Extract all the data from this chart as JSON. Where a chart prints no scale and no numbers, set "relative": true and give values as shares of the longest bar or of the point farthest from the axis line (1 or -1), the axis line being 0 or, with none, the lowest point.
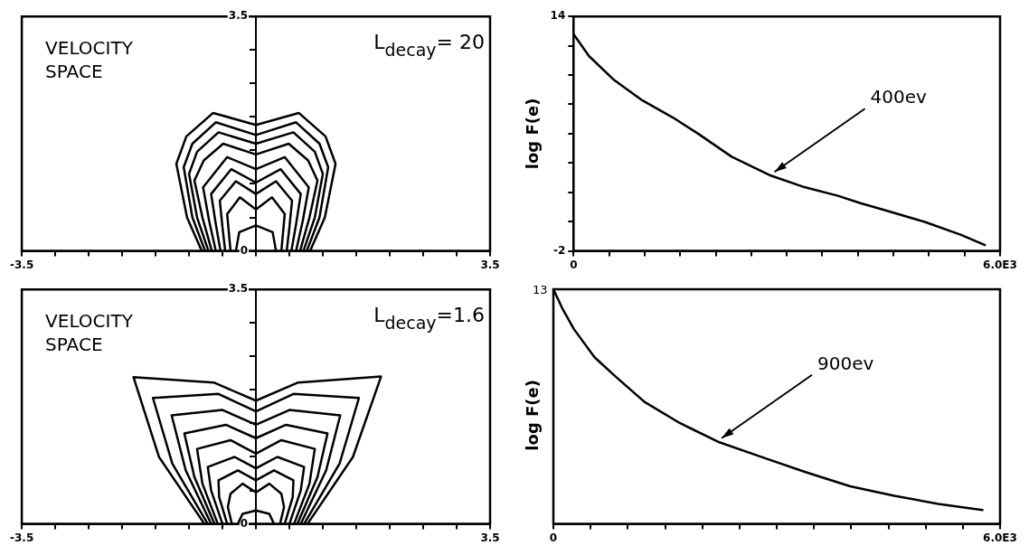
{
  "chart_data": [
    {
      "type": "line",
      "annotations": [
        "VELOCITY SPACE",
        "L$_{decay}$= 20"
      ],
      "xlim": [
        -3.5,
        3.5
      ],
      "ylim": [
        0,
        3.5
      ],
      "xticks": [
        -3.5,
        {
          "value": -3,
          "label": null
        },
        {
          "value": -2.5,
          "label": null
        },
        {
          "value": -2,
          "label": null
        },
        {
          "value": -1.5,
          "label": null
        },
        {
          "value": -1,
          "label": null
        },
        {
          "value": -0.5,
          "label": null
        },
        {
          "value": 0,
          "label": null
        },
        {
          "value": 0.5,
          "label": null
        },
        {
          "value": 1,
          "label": null
        },
        {
          "value": 1.5,
          "label": null
        },
        {
          "value": 2,
          "label": null
        },
        {
          "value": 2.5,
          "label": null
        },
        {
          "value": 3,
          "label": null
        },
        3.5
      ],
      "yticks": [
        0,
        {
          "value": 0.5,
          "label": null
        },
        {
          "value": 1,
          "label": null
        },
        {
          "value": 1.5,
          "label": null
        },
        {
          "value": 2,
          "label": null
        },
        {
          "value": 2.5,
          "label": null
        },
        {
          "value": 3,
          "label": null
        },
        3.5
      ],
      "series": [
        {
          "color": "#000000",
          "x": [
            -0.81,
            -1.03,
            -1.19,
            -1.04,
            -0.64,
            0,
            0.64,
            1.04,
            1.19,
            1.03,
            0.81
          ],
          "values": [
            0,
            0.5,
            1.3,
            1.71,
            2.06,
            1.88,
            2.06,
            1.71,
            1.3,
            0.5,
            0
          ]
        },
        {
          "color": "#000000",
          "x": [
            -0.76,
            -0.95,
            -1.08,
            -0.95,
            -0.6,
            0,
            0.6,
            0.95,
            1.08,
            0.95,
            0.76
          ],
          "values": [
            0,
            0.5,
            1.25,
            1.6,
            1.92,
            1.73,
            1.92,
            1.6,
            1.25,
            0.5,
            0
          ]
        },
        {
          "color": "#000000",
          "x": [
            -0.71,
            -0.88,
            -1.0,
            -0.88,
            -0.56,
            0,
            0.56,
            0.88,
            1.0,
            0.88,
            0.71
          ],
          "values": [
            0,
            0.5,
            1.15,
            1.48,
            1.77,
            1.6,
            1.77,
            1.48,
            1.15,
            0.5,
            0
          ]
        },
        {
          "color": "#000000",
          "x": [
            -0.66,
            -0.8,
            -0.92,
            -0.78,
            -0.49,
            0,
            0.49,
            0.78,
            0.92,
            0.8,
            0.66
          ],
          "values": [
            0,
            0.5,
            1.05,
            1.35,
            1.6,
            1.44,
            1.6,
            1.35,
            1.05,
            0.5,
            0
          ]
        },
        {
          "color": "#000000",
          "x": [
            -0.6,
            -0.7,
            -0.79,
            -0.43,
            0,
            0.43,
            0.79,
            0.7,
            0.6
          ],
          "values": [
            0,
            0.45,
            0.95,
            1.4,
            1.22,
            1.4,
            0.95,
            0.45,
            0
          ]
        },
        {
          "color": "#000000",
          "x": [
            -0.53,
            -0.6,
            -0.67,
            -0.37,
            0,
            0.37,
            0.67,
            0.6,
            0.53
          ],
          "values": [
            0,
            0.4,
            0.85,
            1.22,
            1.02,
            1.22,
            0.85,
            0.4,
            0
          ]
        },
        {
          "color": "#000000",
          "x": [
            -0.46,
            -0.5,
            -0.54,
            -0.3,
            0,
            0.3,
            0.54,
            0.5,
            0.46
          ],
          "values": [
            0,
            0.35,
            0.75,
            1.04,
            0.85,
            1.04,
            0.75,
            0.35,
            0
          ]
        },
        {
          "color": "#000000",
          "x": [
            -0.38,
            -0.43,
            -0.24,
            0,
            0.24,
            0.43,
            0.38
          ],
          "values": [
            0,
            0.55,
            0.8,
            0.62,
            0.8,
            0.55,
            0
          ]
        },
        {
          "color": "#000000",
          "x": [
            -0.3,
            -0.25,
            0,
            0.25,
            0.3
          ],
          "values": [
            0,
            0.28,
            0.38,
            0.28,
            0
          ]
        }
      ]
    },
    {
      "type": "line",
      "ylabel": "log F(e)",
      "xlim": [
        0,
        6000
      ],
      "ylim": [
        -2,
        14
      ],
      "xticks": [
        0,
        {
          "value": 500,
          "label": null
        },
        {
          "value": 1000,
          "label": null
        },
        {
          "value": 1500,
          "label": null
        },
        {
          "value": 2000,
          "label": null
        },
        {
          "value": 2500,
          "label": null
        },
        {
          "value": 3000,
          "label": null
        },
        {
          "value": 3500,
          "label": null
        },
        {
          "value": 4000,
          "label": null
        },
        {
          "value": 4500,
          "label": null
        },
        {
          "value": 5000,
          "label": null
        },
        {
          "value": 5500,
          "label": null
        },
        {
          "value": 6000,
          "label": "6.0E3"
        }
      ],
      "yticks": [
        -2,
        {
          "value": 0,
          "label": null
        },
        {
          "value": 2,
          "label": null
        },
        {
          "value": 4,
          "label": null
        },
        {
          "value": 6,
          "label": null
        },
        {
          "value": 8,
          "label": null
        },
        {
          "value": 10,
          "label": null
        },
        {
          "value": 12,
          "label": null
        },
        14
      ],
      "series": [
        {
          "name": "400ev",
          "color": "#000000",
          "x": [
            0,
            217,
            571,
            965,
            1398,
            1752,
            2224,
            2776,
            3248,
            3720,
            4035,
            4390,
            4941,
            5453,
            5787
          ],
          "values": [
            12.8,
            11.3,
            9.66,
            8.28,
            7.1,
            6.0,
            4.43,
            3.14,
            2.35,
            1.76,
            1.26,
            0.77,
            -0.02,
            -0.91,
            -1.6
          ]
        }
      ]
    },
    {
      "type": "line",
      "annotations": [
        "VELOCITY SPACE",
        "L$_{decay}$=1.6"
      ],
      "xlim": [
        -3.5,
        3.5
      ],
      "ylim": [
        0,
        3.5
      ],
      "xticks": [
        -3.5,
        {
          "value": -3,
          "label": null
        },
        {
          "value": -2.5,
          "label": null
        },
        {
          "value": -2,
          "label": null
        },
        {
          "value": -1.5,
          "label": null
        },
        {
          "value": -1,
          "label": null
        },
        {
          "value": -0.5,
          "label": null
        },
        {
          "value": 0,
          "label": null
        },
        {
          "value": 0.5,
          "label": null
        },
        {
          "value": 1,
          "label": null
        },
        {
          "value": 1.5,
          "label": null
        },
        {
          "value": 2,
          "label": null
        },
        {
          "value": 2.5,
          "label": null
        },
        {
          "value": 3,
          "label": null
        },
        3.5
      ],
      "yticks": [
        0,
        {
          "value": 0.5,
          "label": null
        },
        {
          "value": 1,
          "label": null
        },
        {
          "value": 1.5,
          "label": null
        },
        {
          "value": 2,
          "label": null
        },
        {
          "value": 2.5,
          "label": null
        },
        {
          "value": 3,
          "label": null
        },
        3.5
      ],
      "series": [
        {
          "color": "#000000",
          "x": [
            -0.77,
            -1.45,
            -1.83,
            -0.63,
            0,
            0.63,
            1.87,
            1.45,
            0.77
          ],
          "values": [
            0,
            1.0,
            2.19,
            2.11,
            1.84,
            2.11,
            2.2,
            1.0,
            0
          ]
        },
        {
          "color": "#000000",
          "x": [
            -0.72,
            -1.25,
            -1.54,
            -0.56,
            0,
            0.56,
            1.54,
            1.25,
            0.72
          ],
          "values": [
            0,
            0.9,
            1.88,
            1.94,
            1.68,
            1.94,
            1.88,
            0.9,
            0
          ]
        },
        {
          "color": "#000000",
          "x": [
            -0.67,
            -1.05,
            -1.26,
            -0.5,
            0,
            0.5,
            1.26,
            1.05,
            0.67
          ],
          "values": [
            0,
            0.8,
            1.62,
            1.7,
            1.48,
            1.7,
            1.62,
            0.8,
            0
          ]
        },
        {
          "color": "#000000",
          "x": [
            -0.62,
            -0.92,
            -1.07,
            -0.45,
            0,
            0.45,
            1.07,
            0.92,
            0.62
          ],
          "values": [
            0,
            0.7,
            1.35,
            1.48,
            1.28,
            1.48,
            1.35,
            0.7,
            0
          ]
        },
        {
          "color": "#000000",
          "x": [
            -0.57,
            -0.8,
            -0.88,
            -0.38,
            0,
            0.38,
            0.88,
            0.8,
            0.57
          ],
          "values": [
            0,
            0.6,
            1.12,
            1.25,
            1.05,
            1.25,
            1.12,
            0.6,
            0
          ]
        },
        {
          "color": "#000000",
          "x": [
            -0.5,
            -0.67,
            -0.72,
            -0.32,
            0,
            0.32,
            0.72,
            0.67,
            0.5
          ],
          "values": [
            0,
            0.5,
            0.85,
            1.0,
            0.83,
            1.0,
            0.85,
            0.5,
            0
          ]
        },
        {
          "color": "#000000",
          "x": [
            -0.43,
            -0.55,
            -0.56,
            -0.27,
            0,
            0.27,
            0.56,
            0.55,
            0.43
          ],
          "values": [
            0,
            0.4,
            0.65,
            0.8,
            0.65,
            0.8,
            0.65,
            0.4,
            0
          ]
        },
        {
          "color": "#000000",
          "x": [
            -0.36,
            -0.42,
            -0.38,
            -0.2,
            0,
            0.2,
            0.38,
            0.42,
            0.36
          ],
          "values": [
            0,
            0.25,
            0.45,
            0.6,
            0.47,
            0.6,
            0.45,
            0.25,
            0
          ]
        },
        {
          "color": "#000000",
          "x": [
            -0.27,
            -0.2,
            0,
            0.2,
            0.27
          ],
          "values": [
            0,
            0.15,
            0.2,
            0.15,
            0
          ]
        }
      ]
    },
    {
      "type": "line",
      "ylabel": "log F(e)",
      "relative": true,
      "annotations": [
        "13"
      ],
      "xlim": [
        0,
        6000
      ],
      "xticks": [
        0,
        {
          "value": 500,
          "label": null
        },
        {
          "value": 1000,
          "label": null
        },
        {
          "value": 1500,
          "label": null
        },
        {
          "value": 2000,
          "label": null
        },
        {
          "value": 2500,
          "label": null
        },
        {
          "value": 3000,
          "label": null
        },
        {
          "value": 3500,
          "label": null
        },
        {
          "value": 4000,
          "label": null
        },
        {
          "value": 4500,
          "label": null
        },
        {
          "value": 5000,
          "label": null
        },
        {
          "value": 5500,
          "label": null
        },
        {
          "value": 6000,
          "label": "6.0E3"
        }
      ],
      "series": [
        {
          "name": "900ev",
          "color": "#000000",
          "x": [
            0,
            118,
            276,
            553,
            829,
            1224,
            1697,
            2211,
            2842,
            3395,
            3987,
            4579,
            5171,
            5763
          ],
          "values": [
            1,
            0.92,
            0.83,
            0.71,
            0.63,
            0.52,
            0.43,
            0.35,
            0.28,
            0.22,
            0.16,
            0.12,
            0.085,
            0.059
          ]
        }
      ]
    }
  ]
}
